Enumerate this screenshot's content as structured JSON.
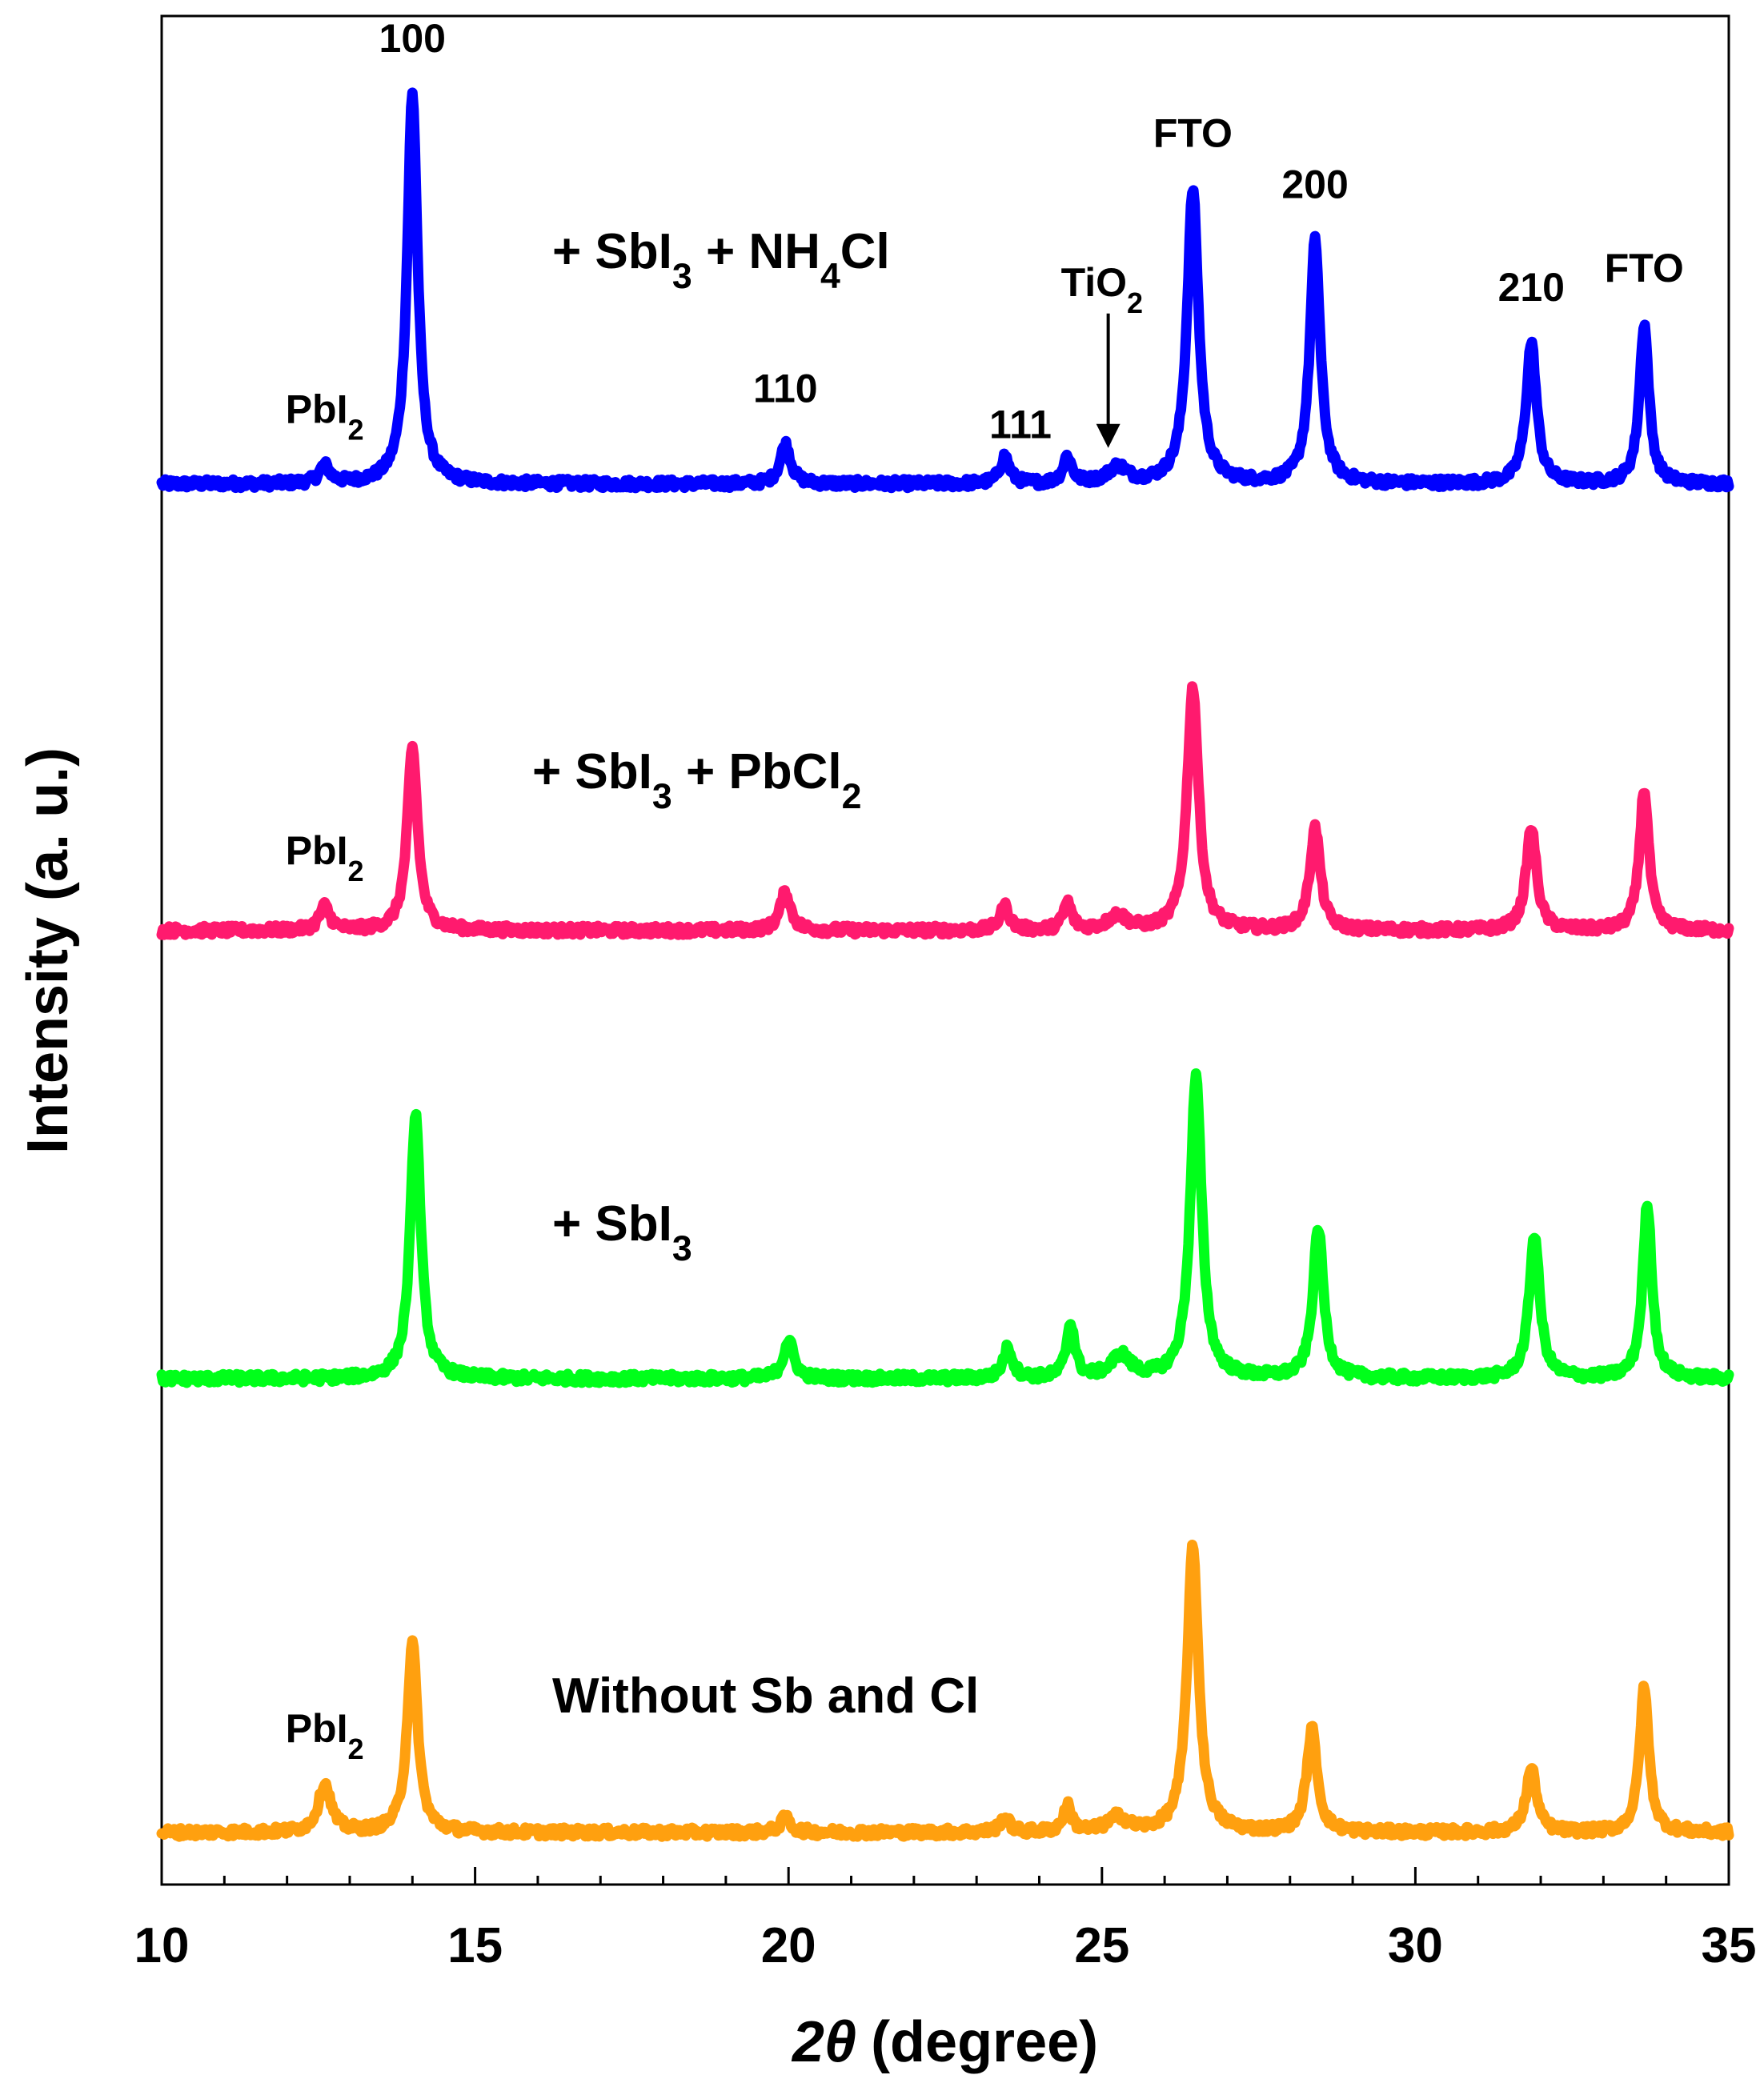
{
  "chart_data": {
    "type": "line",
    "title": "",
    "xlabel": "2θ (degree)",
    "xlabel_symbol": "2θ",
    "xlabel_unit": "(degree)",
    "ylabel": "Intensity (a. u.)",
    "xlim": [
      10,
      35
    ],
    "x_ticks": [
      10,
      15,
      20,
      25,
      30,
      35
    ],
    "x_minor_ticks": [
      11,
      12,
      13,
      14,
      16,
      17,
      18,
      19,
      21,
      22,
      23,
      24,
      26,
      27,
      28,
      29,
      31,
      32,
      33,
      34
    ],
    "grid": false,
    "series": [
      {
        "name": "+ SbI3 + NH4Cl",
        "label_parts": [
          [
            "+ SbI",
            false
          ],
          [
            "3",
            true
          ],
          [
            " + NH",
            false
          ],
          [
            "4",
            true
          ],
          [
            "Cl",
            false
          ]
        ],
        "color": "#0000FF",
        "baseline": 0.5,
        "peaks": [
          [
            12.6,
            0.55,
            0.1
          ],
          [
            14.0,
            12.2,
            0.1
          ],
          [
            19.95,
            1.25,
            0.1
          ],
          [
            23.45,
            0.85,
            0.09
          ],
          [
            24.45,
            0.85,
            0.08
          ],
          [
            25.25,
            0.5,
            0.18
          ],
          [
            26.45,
            9.2,
            0.11
          ],
          [
            28.4,
            7.6,
            0.1
          ],
          [
            31.85,
            4.4,
            0.1
          ],
          [
            33.65,
            5.0,
            0.09
          ]
        ]
      },
      {
        "name": "+ SbI3 + PbCl2",
        "label_parts": [
          [
            "+ SbI",
            false
          ],
          [
            "3",
            true
          ],
          [
            " + PbCl",
            false
          ],
          [
            "2",
            true
          ]
        ],
        "color": "#FF1A6E",
        "baseline": 0.5,
        "peaks": [
          [
            12.6,
            0.75,
            0.1
          ],
          [
            14.0,
            5.7,
            0.1
          ],
          [
            19.95,
            1.2,
            0.1
          ],
          [
            23.45,
            0.75,
            0.09
          ],
          [
            24.45,
            0.85,
            0.08
          ],
          [
            25.25,
            0.45,
            0.18
          ],
          [
            26.45,
            7.6,
            0.11
          ],
          [
            28.4,
            3.2,
            0.1
          ],
          [
            31.85,
            3.2,
            0.1
          ],
          [
            33.65,
            4.4,
            0.09
          ]
        ]
      },
      {
        "name": "+ SbI3",
        "label_parts": [
          [
            "+ SbI",
            false
          ],
          [
            "3",
            true
          ]
        ],
        "color": "#00FF1A",
        "baseline": 0.5,
        "peaks": [
          [
            14.05,
            8.3,
            0.1
          ],
          [
            20.0,
            1.2,
            0.1
          ],
          [
            23.5,
            0.95,
            0.09
          ],
          [
            24.5,
            1.7,
            0.08
          ],
          [
            25.3,
            0.7,
            0.18
          ],
          [
            26.5,
            9.4,
            0.11
          ],
          [
            28.45,
            4.7,
            0.1
          ],
          [
            31.9,
            4.5,
            0.1
          ],
          [
            33.7,
            5.4,
            0.09
          ]
        ]
      },
      {
        "name": "Without Sb and Cl",
        "label_parts": [
          [
            "Without Sb and Cl",
            false
          ]
        ],
        "color": "#FFA00F",
        "baseline": 0.5,
        "peaks": [
          [
            12.6,
            1.5,
            0.12
          ],
          [
            14.0,
            5.9,
            0.1
          ],
          [
            19.95,
            0.45,
            0.1
          ],
          [
            23.45,
            0.45,
            0.09
          ],
          [
            24.45,
            0.8,
            0.08
          ],
          [
            25.25,
            0.45,
            0.18
          ],
          [
            26.45,
            8.9,
            0.11
          ],
          [
            28.35,
            3.2,
            0.1
          ],
          [
            31.85,
            2.0,
            0.1
          ],
          [
            33.65,
            4.5,
            0.09
          ]
        ]
      }
    ],
    "peak_labels": [
      {
        "series": 0,
        "x": 12.6,
        "parts": [
          [
            "PbI",
            false
          ],
          [
            "2",
            true
          ]
        ]
      },
      {
        "series": 0,
        "x": 14.0,
        "parts": [
          [
            "100",
            false
          ]
        ]
      },
      {
        "series": 0,
        "x": 19.95,
        "parts": [
          [
            "110",
            false
          ]
        ]
      },
      {
        "series": 0,
        "x": 23.7,
        "parts": [
          [
            "111",
            false
          ]
        ]
      },
      {
        "series": 0,
        "x": 25.0,
        "parts": [
          [
            "TiO",
            false
          ],
          [
            "2",
            true
          ]
        ],
        "arrow_to": 25.1
      },
      {
        "series": 0,
        "x": 26.45,
        "parts": [
          [
            "FTO",
            false
          ]
        ]
      },
      {
        "series": 0,
        "x": 28.4,
        "parts": [
          [
            "200",
            false
          ]
        ]
      },
      {
        "series": 0,
        "x": 31.85,
        "parts": [
          [
            "210",
            false
          ]
        ]
      },
      {
        "series": 0,
        "x": 33.65,
        "parts": [
          [
            "FTO",
            false
          ]
        ]
      },
      {
        "series": 1,
        "x": 12.6,
        "parts": [
          [
            "PbI",
            false
          ],
          [
            "2",
            true
          ]
        ]
      },
      {
        "series": 3,
        "x": 12.6,
        "parts": [
          [
            "PbI",
            false
          ],
          [
            "2",
            true
          ]
        ]
      }
    ]
  }
}
